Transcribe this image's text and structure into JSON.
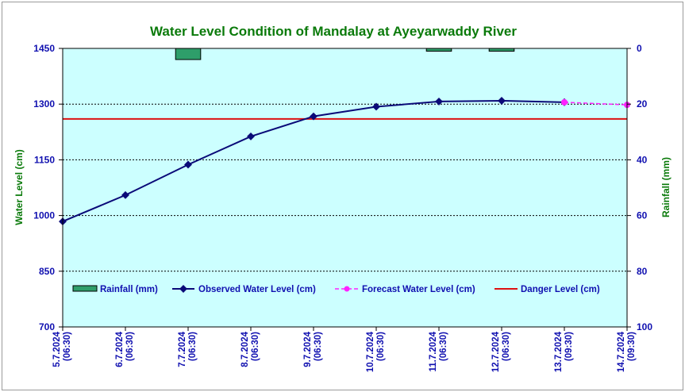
{
  "chart_data": {
    "type": "line",
    "title": "Water Level Condition of Mandalay at Ayeyarwaddy River",
    "ylabel": "Water Level (cm)",
    "y2label": "Rainfall (mm)",
    "ylim": [
      700,
      1450
    ],
    "y_ticks": [
      "1450",
      "1300",
      "1150",
      "1000",
      "850",
      "700"
    ],
    "y2lim": [
      0,
      100
    ],
    "y2_inverted": true,
    "y2_ticks": [
      "0",
      "20",
      "40",
      "60",
      "80",
      "100"
    ],
    "categories": [
      [
        "5.7.2024",
        "(06:30)"
      ],
      [
        "6.7.2024",
        "(06:30)"
      ],
      [
        "7.7.2024",
        "(06:30)"
      ],
      [
        "8.7.2024",
        "(06:30)"
      ],
      [
        "9.7.2024",
        "(06:30)"
      ],
      [
        "10.7.2024",
        "(06:30)"
      ],
      [
        "11.7.2024",
        "(06:30)"
      ],
      [
        "12.7.2024",
        "(06:30)"
      ],
      [
        "13.7.2024",
        "(09:30)"
      ],
      [
        "14.7.2024",
        "(09:30)"
      ]
    ],
    "series": [
      {
        "name": "Rainfall (mm)",
        "type": "bar",
        "axis": "right",
        "color": "#2e9e6a",
        "values": [
          null,
          null,
          4,
          null,
          null,
          null,
          1,
          1,
          null,
          null
        ]
      },
      {
        "name": "Observed Water Level (cm)",
        "type": "line",
        "color": "#0a0a78",
        "values": [
          984,
          1055,
          1137,
          1213,
          1267,
          1293,
          1307,
          1309,
          1305,
          null
        ]
      },
      {
        "name": "Forecast Water Level (cm)",
        "type": "line",
        "dashed": true,
        "color": "#ff22ff",
        "values": [
          null,
          null,
          null,
          null,
          null,
          null,
          null,
          null,
          1305,
          1298
        ]
      },
      {
        "name": "Danger Level (cm)",
        "type": "line",
        "color": "#dd1111",
        "values": [
          1260,
          1260,
          1260,
          1260,
          1260,
          1260,
          1260,
          1260,
          1260,
          1260
        ]
      }
    ],
    "grid": "horizontal dashed",
    "legend_position": "bottom-inside",
    "colors": {
      "plot_background": "#ccffff",
      "title": "#0a7a0a",
      "ticks": "#1010b0"
    }
  }
}
